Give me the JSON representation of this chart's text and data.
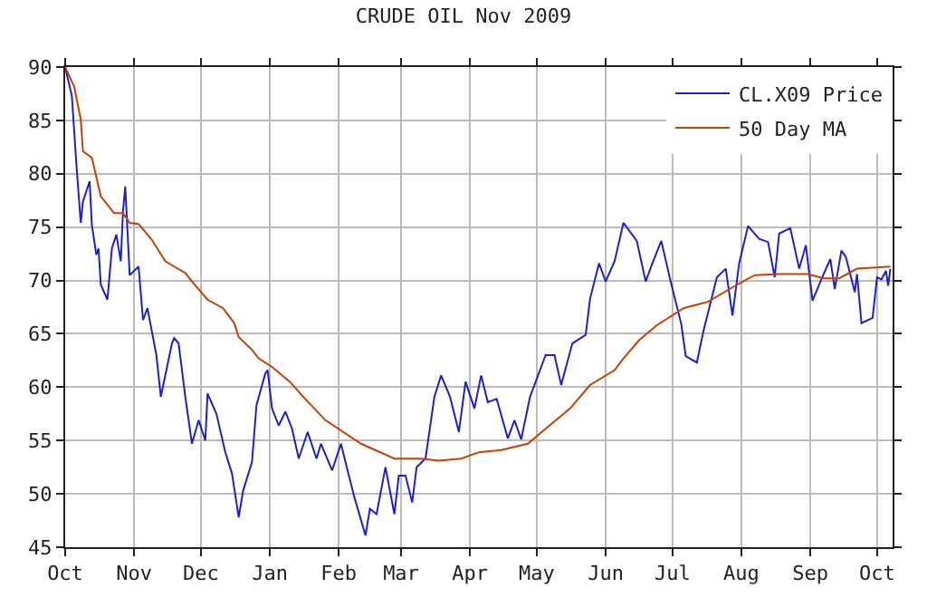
{
  "chart_data": {
    "type": "line",
    "title": "CRUDE OIL Nov 2009",
    "xlim": [
      "2008-10-01",
      "2009-10-08"
    ],
    "xticks": [
      {
        "value": "2008-10-01",
        "label": "Oct"
      },
      {
        "value": "2008-11-01",
        "label": "Nov"
      },
      {
        "value": "2008-12-01",
        "label": "Dec"
      },
      {
        "value": "2009-01-01",
        "label": "Jan"
      },
      {
        "value": "2009-02-01",
        "label": "Feb"
      },
      {
        "value": "2009-03-01",
        "label": "Mar"
      },
      {
        "value": "2009-04-01",
        "label": "Apr"
      },
      {
        "value": "2009-05-01",
        "label": "May"
      },
      {
        "value": "2009-06-01",
        "label": "Jun"
      },
      {
        "value": "2009-07-01",
        "label": "Jul"
      },
      {
        "value": "2009-08-01",
        "label": "Aug"
      },
      {
        "value": "2009-09-01",
        "label": "Sep"
      },
      {
        "value": "2009-10-01",
        "label": "Oct"
      }
    ],
    "ylim": [
      45,
      90
    ],
    "yticks": [
      45,
      50,
      55,
      60,
      65,
      70,
      75,
      80,
      85,
      90
    ],
    "grid": true,
    "legend": "top right",
    "marker": "none",
    "line_style": "solid",
    "series": [
      {
        "name": "CL.X09 Price",
        "color": "#2020c8",
        "x": [
          "2008-10-01",
          "2008-10-04",
          "2008-10-06",
          "2008-10-08",
          "2008-10-09",
          "2008-10-12",
          "2008-10-13",
          "2008-10-15",
          "2008-10-16",
          "2008-10-17",
          "2008-10-20",
          "2008-10-22",
          "2008-10-24",
          "2008-10-26",
          "2008-10-27",
          "2008-10-28",
          "2008-10-30",
          "2008-11-03",
          "2008-11-05",
          "2008-11-07",
          "2008-11-11",
          "2008-11-13",
          "2008-11-18",
          "2008-11-19",
          "2008-11-21",
          "2008-11-24",
          "2008-11-27",
          "2008-11-30",
          "2008-12-03",
          "2008-12-04",
          "2008-12-08",
          "2008-12-12",
          "2008-12-15",
          "2008-12-17",
          "2008-12-18",
          "2008-12-20",
          "2008-12-24",
          "2008-12-26",
          "2008-12-30",
          "2008-12-31",
          "2009-01-02",
          "2009-01-05",
          "2009-01-08",
          "2009-01-11",
          "2009-01-14",
          "2009-01-18",
          "2009-01-22",
          "2009-01-24",
          "2009-01-29",
          "2009-02-02",
          "2009-02-04",
          "2009-02-08",
          "2009-02-13",
          "2009-02-15",
          "2009-02-18",
          "2009-02-22",
          "2009-02-26",
          "2009-02-28",
          "2009-03-03",
          "2009-03-06",
          "2009-03-08",
          "2009-03-12",
          "2009-03-16",
          "2009-03-19",
          "2009-03-23",
          "2009-03-27",
          "2009-03-30",
          "2009-04-03",
          "2009-04-06",
          "2009-04-09",
          "2009-04-13",
          "2009-04-18",
          "2009-04-21",
          "2009-04-24",
          "2009-04-28",
          "2009-05-05",
          "2009-05-09",
          "2009-05-12",
          "2009-05-17",
          "2009-05-23",
          "2009-05-25",
          "2009-05-29",
          "2009-06-01",
          "2009-06-05",
          "2009-06-09",
          "2009-06-15",
          "2009-06-19",
          "2009-06-22",
          "2009-06-26",
          "2009-06-30",
          "2009-07-05",
          "2009-07-07",
          "2009-07-12",
          "2009-07-15",
          "2009-07-21",
          "2009-07-25",
          "2009-07-28",
          "2009-07-31",
          "2009-08-04",
          "2009-08-09",
          "2009-08-13",
          "2009-08-16",
          "2009-08-18",
          "2009-08-23",
          "2009-08-27",
          "2009-08-30",
          "2009-09-02",
          "2009-09-07",
          "2009-09-10",
          "2009-09-12",
          "2009-09-15",
          "2009-09-17",
          "2009-09-21",
          "2009-09-22",
          "2009-09-24",
          "2009-09-29",
          "2009-10-01",
          "2009-10-03",
          "2009-10-05",
          "2009-10-06",
          "2009-10-07"
        ],
        "values": [
          90,
          87.3,
          81,
          75.4,
          77.4,
          79.3,
          75.2,
          72.4,
          73,
          69.6,
          68.2,
          73,
          74.3,
          71.8,
          76.5,
          78.8,
          70.5,
          71.3,
          66.3,
          67.4,
          63,
          59.1,
          64.1,
          64.6,
          64.1,
          59.1,
          54.7,
          56.9,
          55,
          59.4,
          57.5,
          53.9,
          51.9,
          49.2,
          47.8,
          50.3,
          53,
          58.3,
          61.3,
          61.6,
          58,
          56.4,
          57.7,
          56.1,
          53.3,
          55.8,
          53.3,
          54.7,
          52.2,
          54.7,
          53,
          49.7,
          46.1,
          48.6,
          48.1,
          52.5,
          48.1,
          51.7,
          51.7,
          49.2,
          52.5,
          53.3,
          59.1,
          61.1,
          59.1,
          55.8,
          60.5,
          58,
          61.1,
          58.6,
          58.9,
          55.2,
          56.9,
          55.1,
          59.1,
          63,
          63,
          60.2,
          64.1,
          64.9,
          68.3,
          71.6,
          69.9,
          71.8,
          75.4,
          73.7,
          69.9,
          71.6,
          73.7,
          70.1,
          65.9,
          62.9,
          62.3,
          65.3,
          70.3,
          71.1,
          66.7,
          71.6,
          75.1,
          73.9,
          73.6,
          70.3,
          74.4,
          74.9,
          71.1,
          73.3,
          68.1,
          70.6,
          72,
          69.2,
          72.8,
          72.2,
          68.9,
          70.6,
          66,
          66.5,
          70.3,
          70.1,
          70.9,
          69.5,
          71.1
        ]
      },
      {
        "name": "50 Day MA",
        "color": "#c84000",
        "x": [
          "2008-10-01",
          "2008-10-05",
          "2008-10-08",
          "2008-10-09",
          "2008-10-13",
          "2008-10-17",
          "2008-10-23",
          "2008-10-27",
          "2008-10-30",
          "2008-11-03",
          "2008-11-09",
          "2008-11-15",
          "2008-11-19",
          "2008-11-24",
          "2008-11-27",
          "2008-12-04",
          "2008-12-11",
          "2008-12-16",
          "2008-12-18",
          "2008-12-24",
          "2008-12-27",
          "2009-01-02",
          "2009-01-10",
          "2009-01-16",
          "2009-01-26",
          "2009-02-11",
          "2009-02-26",
          "2009-03-10",
          "2009-03-18",
          "2009-03-28",
          "2009-04-05",
          "2009-04-15",
          "2009-04-27",
          "2009-05-05",
          "2009-05-16",
          "2009-05-25",
          "2009-06-05",
          "2009-06-09",
          "2009-06-16",
          "2009-06-24",
          "2009-07-06",
          "2009-07-17",
          "2009-07-30",
          "2009-08-07",
          "2009-08-18",
          "2009-08-31",
          "2009-09-07",
          "2009-09-14",
          "2009-09-22",
          "2009-10-07"
        ],
        "values": [
          90,
          88.2,
          85.1,
          82.1,
          81.5,
          77.9,
          76.3,
          76.3,
          75.4,
          75.3,
          73.8,
          71.8,
          71.3,
          70.7,
          69.9,
          68.2,
          67.4,
          66,
          64.7,
          63.5,
          62.7,
          61.9,
          60.5,
          59.1,
          56.9,
          54.7,
          53.3,
          53.3,
          53.1,
          53.3,
          53.9,
          54.1,
          54.7,
          56.1,
          58,
          60.2,
          61.6,
          62.7,
          64.4,
          65.8,
          67.4,
          68,
          69.6,
          70.5,
          70.6,
          70.6,
          70.2,
          70.2,
          71.1,
          71.3
        ]
      }
    ]
  }
}
